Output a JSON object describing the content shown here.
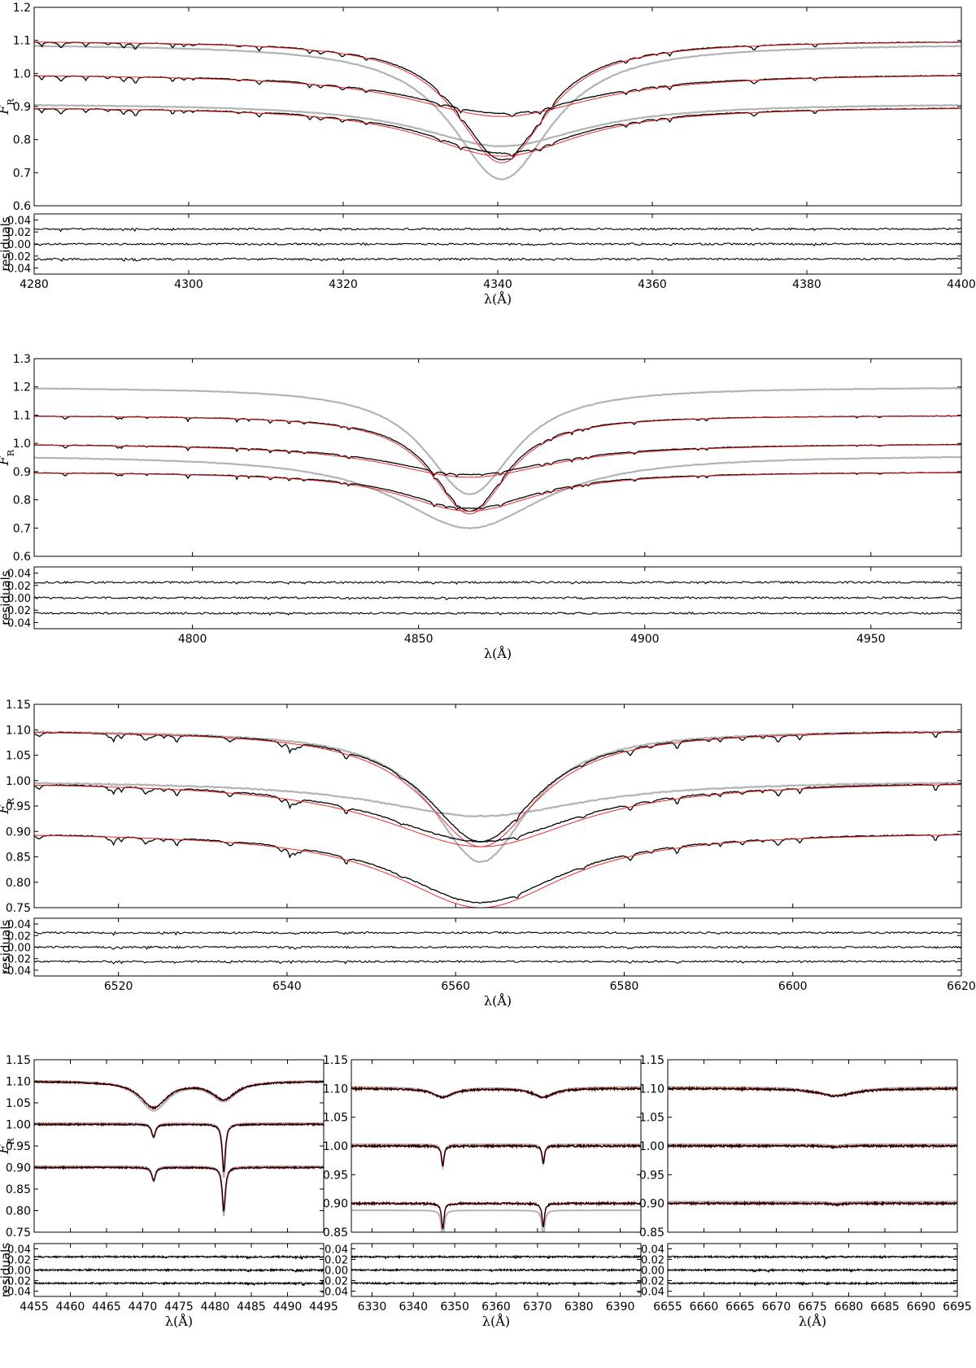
{
  "figure": {
    "flux_label": "F",
    "flux_label_sub": "R",
    "residuals_label": "residuals",
    "xlabel": "λ(Å)"
  },
  "colors": {
    "model": "#e8141a",
    "observed": "#000000",
    "component": "#b3b3b3"
  },
  "chart_data": [
    {
      "type": "line",
      "title": "",
      "xlabel": "λ(Å)",
      "ylabel": "F_R",
      "xlim": [
        4280,
        4400
      ],
      "ylim": [
        0.6,
        1.2
      ],
      "y_ticks": [
        "0.6",
        "0.7",
        "0.8",
        "0.9",
        "1.0",
        "1.1",
        "1.2"
      ],
      "x_ticks": [
        "4280",
        "4300",
        "4320",
        "4340",
        "4360",
        "4380",
        "4400"
      ],
      "line_center": 4340.5,
      "series": [
        {
          "role": "observed",
          "offset": 1.1,
          "min": 0.74,
          "width": 7
        },
        {
          "role": "observed",
          "offset": 1.0,
          "min": 0.88,
          "width": 14
        },
        {
          "role": "observed",
          "offset": 0.9,
          "min": 0.76,
          "width": 12
        },
        {
          "role": "component",
          "offset": 1.09,
          "min": 0.68,
          "width": 8
        },
        {
          "role": "component",
          "offset": 0.91,
          "min": 0.78,
          "width": 13
        }
      ],
      "residuals": {
        "ylim": [
          -0.05,
          0.05
        ],
        "y_ticks": [
          "0.04",
          "0.02",
          "0.00",
          "-0.02",
          "-0.04"
        ],
        "offsets": [
          0.025,
          0.0,
          -0.025
        ]
      }
    },
    {
      "type": "line",
      "title": "",
      "xlabel": "λ(Å)",
      "ylabel": "F_R",
      "xlim": [
        4765,
        4970
      ],
      "ylim": [
        0.6,
        1.3
      ],
      "y_ticks": [
        "0.6",
        "0.7",
        "0.8",
        "0.9",
        "1.0",
        "1.1",
        "1.2",
        "1.3"
      ],
      "x_ticks": [
        "4800",
        "4850",
        "4900",
        "4950"
      ],
      "line_center": 4861.3,
      "series": [
        {
          "role": "observed",
          "offset": 1.1,
          "min": 0.76,
          "width": 10
        },
        {
          "role": "observed",
          "offset": 1.0,
          "min": 0.89,
          "width": 22
        },
        {
          "role": "observed",
          "offset": 0.9,
          "min": 0.77,
          "width": 18
        },
        {
          "role": "component",
          "offset": 1.2,
          "min": 0.82,
          "width": 12
        },
        {
          "role": "component",
          "offset": 0.96,
          "min": 0.7,
          "width": 20
        }
      ],
      "residuals": {
        "ylim": [
          -0.05,
          0.05
        ],
        "y_ticks": [
          "0.04",
          "0.02",
          "0.00",
          "-0.02",
          "-0.04"
        ],
        "offsets": [
          0.025,
          0.0,
          -0.025
        ]
      }
    },
    {
      "type": "line",
      "title": "",
      "xlabel": "λ(Å)",
      "ylabel": "F_R",
      "xlim": [
        6510,
        6620
      ],
      "ylim": [
        0.75,
        1.15
      ],
      "y_ticks": [
        "0.75",
        "0.80",
        "0.85",
        "0.90",
        "0.95",
        "1.00",
        "1.05",
        "1.10",
        "1.15"
      ],
      "x_ticks": [
        "6520",
        "6540",
        "6560",
        "6580",
        "6600",
        "6620"
      ],
      "line_center": 6563.0,
      "series": [
        {
          "role": "observed",
          "offset": 1.1,
          "min": 0.88,
          "width": 8
        },
        {
          "role": "observed",
          "offset": 1.0,
          "min": 0.88,
          "width": 14
        },
        {
          "role": "observed",
          "offset": 0.9,
          "min": 0.76,
          "width": 12
        },
        {
          "role": "component",
          "offset": 1.1,
          "min": 0.84,
          "width": 7
        },
        {
          "role": "component",
          "offset": 1.0,
          "min": 0.93,
          "width": 15
        }
      ],
      "residuals": {
        "ylim": [
          -0.05,
          0.05
        ],
        "y_ticks": [
          "0.04",
          "0.02",
          "0.00",
          "-0.02",
          "-0.04"
        ],
        "offsets": [
          0.025,
          0.0,
          -0.025
        ]
      }
    },
    {
      "type": "line",
      "title": "",
      "xlabel": "λ(Å)",
      "ylabel": "F_R",
      "xlim": [
        4455,
        4495
      ],
      "ylim": [
        0.75,
        1.15
      ],
      "y_ticks": [
        "0.75",
        "0.80",
        "0.85",
        "0.90",
        "0.95",
        "1.00",
        "1.05",
        "1.10",
        "1.15"
      ],
      "x_ticks": [
        "4455",
        "4460",
        "4465",
        "4470",
        "4475",
        "4480",
        "4485",
        "4490",
        "4495"
      ],
      "lines": [
        {
          "center": 4471.5,
          "rows": [
            {
              "offset": 1.1,
              "min": 1.04,
              "width": 2.2
            },
            {
              "offset": 1.0,
              "min": 0.97,
              "width": 0.3
            },
            {
              "offset": 0.9,
              "min": 0.87,
              "width": 0.3
            }
          ]
        },
        {
          "center": 4481.2,
          "rows": [
            {
              "offset": 1.1,
              "min": 1.06,
              "width": 2.0
            },
            {
              "offset": 1.0,
              "min": 0.89,
              "width": 0.25
            },
            {
              "offset": 0.9,
              "min": 0.8,
              "width": 0.25
            }
          ]
        }
      ],
      "residuals": {
        "ylim": [
          -0.05,
          0.05
        ],
        "y_ticks": [
          "0.04",
          "0.02",
          "0.00",
          "-0.02",
          "-0.04"
        ],
        "offsets": [
          0.025,
          0.0,
          -0.025
        ]
      }
    },
    {
      "type": "line",
      "title": "",
      "xlabel": "λ(Å)",
      "ylabel": "",
      "xlim": [
        6325,
        6395
      ],
      "ylim": [
        0.85,
        1.15
      ],
      "y_ticks": [
        "0.85",
        "0.90",
        "0.95",
        "1.00",
        "1.05",
        "1.10",
        "1.15"
      ],
      "x_ticks": [
        "6330",
        "6340",
        "6350",
        "6360",
        "6370",
        "6380",
        "6390"
      ],
      "lines": [
        {
          "center": 6347.1,
          "rows": [
            {
              "offset": 1.1,
              "min": 1.085,
              "width": 3.0
            },
            {
              "offset": 1.0,
              "min": 0.965,
              "width": 0.35
            },
            {
              "offset": 0.9,
              "min": 0.855,
              "width": 0.35
            }
          ]
        },
        {
          "center": 6371.4,
          "rows": [
            {
              "offset": 1.1,
              "min": 1.085,
              "width": 3.0
            },
            {
              "offset": 1.0,
              "min": 0.97,
              "width": 0.35
            },
            {
              "offset": 0.9,
              "min": 0.86,
              "width": 0.35
            }
          ]
        }
      ],
      "residuals": {
        "ylim": [
          -0.05,
          0.05
        ],
        "y_ticks": [
          "0.04",
          "0.02",
          "0.00",
          "-0.02",
          "-0.04"
        ],
        "offsets": [
          0.025,
          0.0,
          -0.025
        ]
      }
    },
    {
      "type": "line",
      "title": "",
      "xlabel": "λ(Å)",
      "ylabel": "",
      "xlim": [
        6655,
        6695
      ],
      "ylim": [
        0.85,
        1.15
      ],
      "y_ticks": [
        "0.85",
        "0.90",
        "0.95",
        "1.00",
        "1.05",
        "1.10",
        "1.15"
      ],
      "x_ticks": [
        "6655",
        "6660",
        "6665",
        "6670",
        "6675",
        "6680",
        "6685",
        "6690",
        "6695"
      ],
      "lines": [
        {
          "center": 6678.2,
          "rows": [
            {
              "offset": 1.1,
              "min": 1.087,
              "width": 3.0
            },
            {
              "offset": 1.0,
              "min": 0.998,
              "width": 1.0
            },
            {
              "offset": 0.9,
              "min": 0.898,
              "width": 1.0
            }
          ]
        }
      ],
      "residuals": {
        "ylim": [
          -0.05,
          0.05
        ],
        "y_ticks": [
          "0.04",
          "0.02",
          "0.00",
          "-0.02",
          "-0.04"
        ],
        "offsets": [
          0.025,
          0.0,
          -0.025
        ]
      }
    }
  ]
}
